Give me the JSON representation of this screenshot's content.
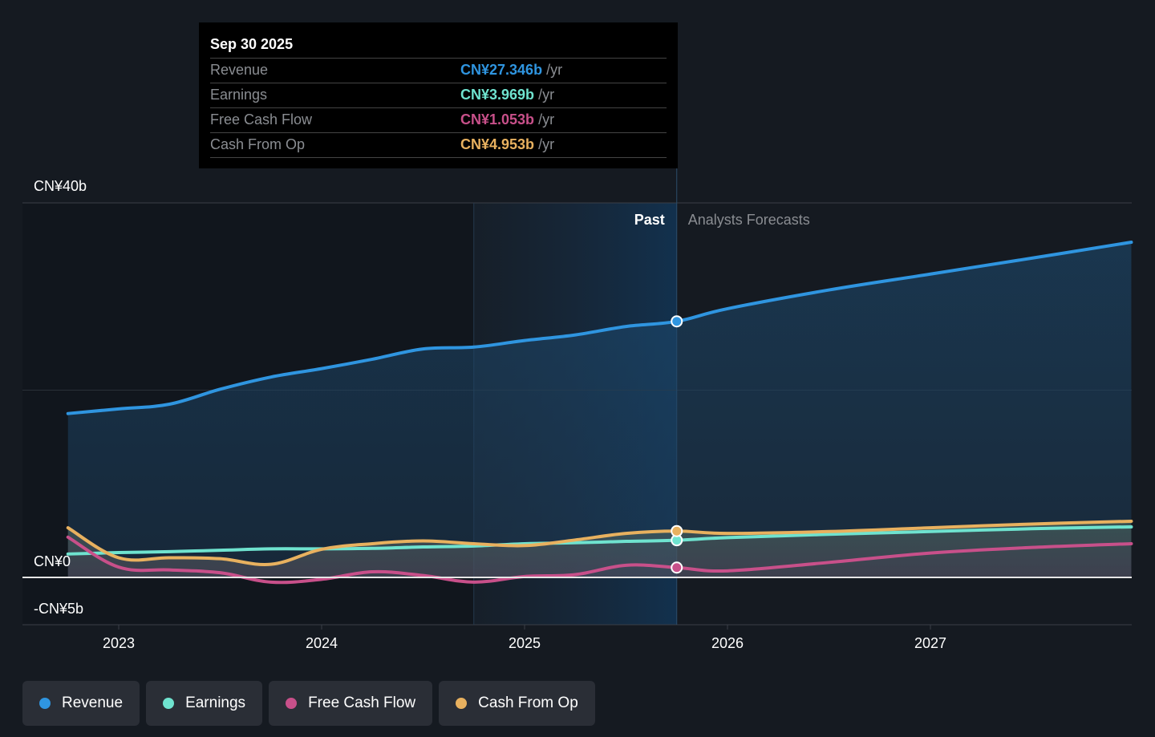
{
  "tooltip": {
    "date": "Sep 30 2025",
    "rows": [
      {
        "label": "Revenue",
        "value": "CN¥27.346b",
        "unit": "/yr",
        "color": "#2f95e0"
      },
      {
        "label": "Earnings",
        "value": "CN¥3.969b",
        "unit": "/yr",
        "color": "#6fe3cf"
      },
      {
        "label": "Free Cash Flow",
        "value": "CN¥1.053b",
        "unit": "/yr",
        "color": "#c8508a"
      },
      {
        "label": "Cash From Op",
        "value": "CN¥4.953b",
        "unit": "/yr",
        "color": "#e8b15f"
      }
    ]
  },
  "legend": [
    {
      "label": "Revenue",
      "color": "#2f95e0"
    },
    {
      "label": "Earnings",
      "color": "#6fe3cf"
    },
    {
      "label": "Free Cash Flow",
      "color": "#c8508a"
    },
    {
      "label": "Cash From Op",
      "color": "#e8b15f"
    }
  ],
  "chart_data": {
    "type": "line",
    "title": "",
    "xlabel": "",
    "ylabel": "",
    "ylim": [
      -5,
      40
    ],
    "xlim": [
      2022.74,
      2027.99
    ],
    "y_ticks": [
      {
        "value": 40,
        "label": "CN¥40b"
      },
      {
        "value": 0,
        "label": "CN¥0"
      },
      {
        "value": -5,
        "label": "-CN¥5b"
      }
    ],
    "x_ticks": [
      {
        "value": 2023,
        "label": "2023"
      },
      {
        "value": 2024,
        "label": "2024"
      },
      {
        "value": 2025,
        "label": "2025"
      },
      {
        "value": 2026,
        "label": "2026"
      },
      {
        "value": 2027,
        "label": "2027"
      }
    ],
    "grid": true,
    "past_label": "Past",
    "forecast_label": "Analysts Forecasts",
    "past_region_start": 2024.75,
    "divider_x": 2025.75,
    "hover_x": 2025.75,
    "legend_position": "bottom-left",
    "series": [
      {
        "name": "Revenue",
        "color": "#2f95e0",
        "x": [
          2022.75,
          2023.0,
          2023.25,
          2023.5,
          2023.75,
          2024.0,
          2024.25,
          2024.5,
          2024.75,
          2025.0,
          2025.25,
          2025.5,
          2025.75,
          2026.0,
          2026.5,
          2027.0,
          2027.5,
          2027.99
        ],
        "values": [
          17.5,
          18.0,
          18.5,
          20.1,
          21.4,
          22.3,
          23.3,
          24.4,
          24.6,
          25.3,
          25.9,
          26.8,
          27.35,
          28.7,
          30.7,
          32.4,
          34.1,
          35.8
        ]
      },
      {
        "name": "Earnings",
        "color": "#6fe3cf",
        "x": [
          2022.75,
          2023.0,
          2023.25,
          2023.5,
          2023.75,
          2024.0,
          2024.25,
          2024.5,
          2024.75,
          2025.0,
          2025.25,
          2025.5,
          2025.75,
          2026.0,
          2026.5,
          2027.0,
          2027.5,
          2027.99
        ],
        "values": [
          2.5,
          2.65,
          2.75,
          2.9,
          3.05,
          3.05,
          3.1,
          3.25,
          3.35,
          3.6,
          3.7,
          3.85,
          3.97,
          4.25,
          4.6,
          4.9,
          5.2,
          5.4
        ]
      },
      {
        "name": "Free Cash Flow",
        "color": "#c8508a",
        "x": [
          2022.75,
          2023.0,
          2023.25,
          2023.5,
          2023.75,
          2024.0,
          2024.25,
          2024.5,
          2024.75,
          2025.0,
          2025.25,
          2025.5,
          2025.75,
          2026.0,
          2026.5,
          2027.0,
          2027.5,
          2027.99
        ],
        "values": [
          4.3,
          1.1,
          0.8,
          0.5,
          -0.5,
          -0.2,
          0.6,
          0.2,
          -0.5,
          0.1,
          0.3,
          1.3,
          1.05,
          0.7,
          1.6,
          2.6,
          3.2,
          3.6
        ]
      },
      {
        "name": "Cash From Op",
        "color": "#e8b15f",
        "x": [
          2022.75,
          2023.0,
          2023.25,
          2023.5,
          2023.75,
          2024.0,
          2024.25,
          2024.5,
          2024.75,
          2025.0,
          2025.25,
          2025.5,
          2025.75,
          2026.0,
          2026.5,
          2027.0,
          2027.5,
          2027.99
        ],
        "values": [
          5.3,
          2.1,
          2.1,
          2.0,
          1.4,
          3.0,
          3.6,
          3.9,
          3.6,
          3.4,
          4.0,
          4.7,
          4.95,
          4.7,
          4.9,
          5.3,
          5.7,
          6.0
        ]
      }
    ]
  }
}
